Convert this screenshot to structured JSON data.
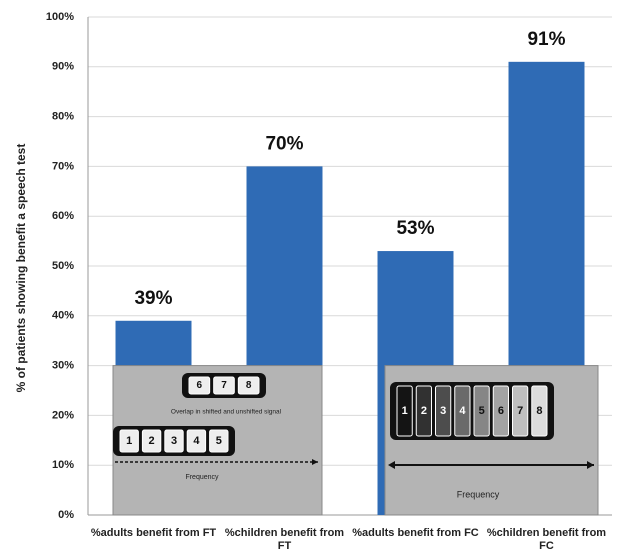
{
  "chart_data": {
    "type": "bar",
    "y_label": "% of patients  showing benefit a speech test",
    "categories": [
      "%adults benefit from FT",
      "%children benefit from FT",
      "%adults benefit from FC",
      "%children benefit from FC"
    ],
    "values": [
      39,
      70,
      53,
      91
    ],
    "value_labels": [
      "39%",
      "70%",
      "53%",
      "91%"
    ],
    "color": "#2f6bb5",
    "ylim": [
      0,
      100
    ],
    "yticks": [
      {
        "value": 0,
        "label": "0%"
      },
      {
        "value": 10,
        "label": "10%"
      },
      {
        "value": 20,
        "label": "20%"
      },
      {
        "value": 30,
        "label": "30%"
      },
      {
        "value": 40,
        "label": "40%"
      },
      {
        "value": 50,
        "label": "50%"
      },
      {
        "value": 60,
        "label": "60%"
      },
      {
        "value": 70,
        "label": "70%"
      },
      {
        "value": 80,
        "label": "80%"
      },
      {
        "value": 90,
        "label": "90%"
      },
      {
        "value": 100,
        "label": "100%"
      }
    ],
    "grid": true,
    "insets": [
      {
        "top_digits": [
          "6",
          "7",
          "8"
        ],
        "overlap": "Overlap in shifted and unshifted signal",
        "bottom_digits": [
          "1",
          "2",
          "3",
          "4",
          "5"
        ],
        "axis": "Frequency"
      },
      {
        "digits": [
          "1",
          "2",
          "3",
          "4",
          "5",
          "6",
          "7",
          "8"
        ],
        "axis": "Frequency"
      }
    ]
  }
}
